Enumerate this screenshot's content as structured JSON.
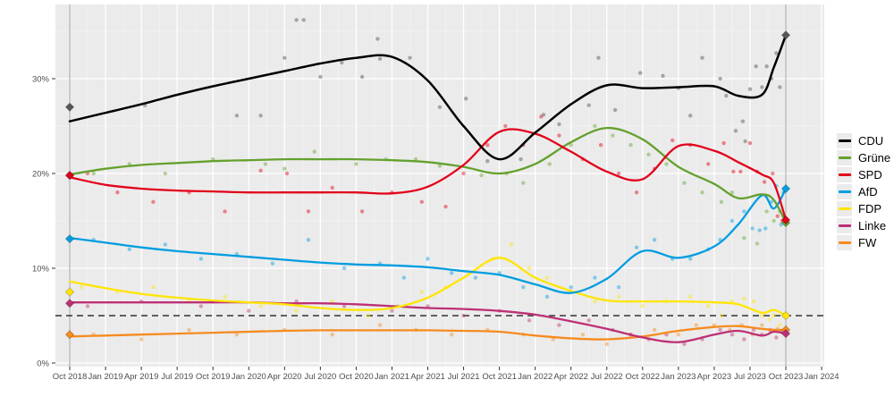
{
  "chart_data": {
    "type": "line",
    "title": "",
    "description": "Opinion polling trend chart, seven party series (scatter of individual polls + smoothed trend lines), election result diamonds at both ends",
    "x_axis": {
      "tick_months": [
        0,
        3,
        6,
        9,
        12,
        15,
        18,
        21,
        24,
        27,
        30,
        33,
        36,
        39,
        42,
        45,
        48,
        51,
        54,
        57,
        60,
        63
      ],
      "tick_labels": [
        "Oct 2018",
        "Jan 2019",
        "Apr 2019",
        "Jul 2019",
        "Oct 2019",
        "Jan 2020",
        "Apr 2020",
        "Jul 2020",
        "Oct 2020",
        "Jan 2021",
        "Apr 2021",
        "Jul 2021",
        "Oct 2021",
        "Jan 2022",
        "Apr 2022",
        "Jul 2022",
        "Oct 2022",
        "Jan 2023",
        "Apr 2023",
        "Jul 2023",
        "Oct 2023",
        "Jan 2024"
      ]
    },
    "y_axis": {
      "tick_values": [
        0,
        10,
        20,
        30
      ],
      "tick_labels": [
        "0%",
        "10%",
        "20%",
        "30%"
      ],
      "minor_values": [
        5,
        15,
        25,
        35
      ],
      "range": [
        0,
        37.8
      ]
    },
    "threshold_line": {
      "value": 5,
      "style": "dashed"
    },
    "election_lines_months": [
      0,
      60
    ],
    "trend_months": [
      0,
      3,
      6,
      9,
      12,
      15,
      18,
      21,
      24,
      27,
      30,
      33,
      36,
      39,
      42,
      45,
      48,
      51,
      54,
      56,
      58,
      59,
      60
    ],
    "parties": [
      {
        "name": "FW",
        "color": "#f68b1f",
        "result_2018": 3.0,
        "result_2023": 3.5,
        "trend": [
          2.8,
          2.9,
          3.0,
          3.1,
          3.2,
          3.3,
          3.4,
          3.45,
          3.45,
          3.45,
          3.45,
          3.4,
          3.3,
          2.9,
          2.6,
          2.5,
          2.8,
          3.4,
          3.8,
          3.9,
          3.6,
          3.5,
          3.5
        ],
        "polls": [
          [
            2,
            3.0
          ],
          [
            6,
            2.5
          ],
          [
            10,
            3.5
          ],
          [
            14,
            3.0
          ],
          [
            18,
            3.5
          ],
          [
            22,
            3.0
          ],
          [
            26,
            4.0
          ],
          [
            29,
            3.5
          ],
          [
            32,
            3.0
          ],
          [
            35,
            3.5
          ],
          [
            38,
            3.0
          ],
          [
            40.5,
            2.5
          ],
          [
            43,
            3.0
          ],
          [
            45,
            2.0
          ],
          [
            47,
            3.0
          ],
          [
            49,
            3.5
          ],
          [
            51,
            3.0
          ],
          [
            52.5,
            4.0
          ],
          [
            54,
            4.0
          ],
          [
            55.3,
            3.5
          ],
          [
            56.3,
            4.0
          ],
          [
            57.2,
            3.0
          ],
          [
            58,
            4.0
          ],
          [
            58.7,
            3.4
          ],
          [
            59.3,
            3.6
          ]
        ]
      },
      {
        "name": "Linke",
        "color": "#be3075",
        "result_2018": 6.3,
        "result_2023": 3.1,
        "trend": [
          6.4,
          6.4,
          6.4,
          6.4,
          6.4,
          6.4,
          6.3,
          6.3,
          6.2,
          6.0,
          5.8,
          5.7,
          5.5,
          5.1,
          4.4,
          3.6,
          2.7,
          2.2,
          3.0,
          3.4,
          2.9,
          3.3,
          3.1
        ],
        "polls": [
          [
            1.5,
            6.0
          ],
          [
            6,
            6.5
          ],
          [
            11,
            6.0
          ],
          [
            15,
            5.5
          ],
          [
            19,
            6.5
          ],
          [
            23,
            6.0
          ],
          [
            27,
            5.5
          ],
          [
            30,
            6.0
          ],
          [
            33,
            5.0
          ],
          [
            36,
            5.5
          ],
          [
            38.5,
            4.5
          ],
          [
            41,
            4.0
          ],
          [
            43.5,
            4.5
          ],
          [
            45.5,
            3.5
          ],
          [
            47,
            3.0
          ],
          [
            48.5,
            2.5
          ],
          [
            50,
            3.0
          ],
          [
            51.5,
            2.0
          ],
          [
            53,
            2.5
          ],
          [
            54.5,
            3.5
          ],
          [
            55.5,
            3.0
          ],
          [
            56.5,
            2.5
          ],
          [
            57.3,
            3.5
          ],
          [
            58,
            3.0
          ],
          [
            58.7,
            3.5
          ],
          [
            59.2,
            2.7
          ],
          [
            59.6,
            3.3
          ]
        ]
      },
      {
        "name": "FDP",
        "color": "#ffe500",
        "result_2018": 7.5,
        "result_2023": 5.0,
        "trend": [
          8.6,
          7.9,
          7.3,
          6.9,
          6.6,
          6.4,
          6.2,
          5.8,
          5.6,
          5.8,
          6.9,
          9.0,
          11.1,
          9.0,
          7.6,
          6.6,
          6.5,
          6.5,
          6.4,
          6.2,
          5.3,
          5.6,
          5.0
        ],
        "polls": [
          [
            1,
            8.0
          ],
          [
            4,
            7.5
          ],
          [
            7,
            8.0
          ],
          [
            10,
            6.5
          ],
          [
            13,
            7.0
          ],
          [
            16,
            6.0
          ],
          [
            19,
            5.5
          ],
          [
            22,
            6.5
          ],
          [
            25,
            5.0
          ],
          [
            27.5,
            6.0
          ],
          [
            29.5,
            7.5
          ],
          [
            31.5,
            8.0
          ],
          [
            33.5,
            9.5
          ],
          [
            35.5,
            11.0
          ],
          [
            37,
            12.5
          ],
          [
            38.5,
            10.0
          ],
          [
            40,
            9.0
          ],
          [
            42,
            7.5
          ],
          [
            44,
            6.5
          ],
          [
            46,
            7.0
          ],
          [
            48,
            6.0
          ],
          [
            50,
            6.5
          ],
          [
            52,
            7.0
          ],
          [
            53.5,
            6.0
          ],
          [
            54.6,
            5.0
          ],
          [
            55.5,
            6.5
          ],
          [
            56.5,
            6.8
          ],
          [
            57.3,
            6.5
          ],
          [
            58,
            5.0
          ],
          [
            58.6,
            4.6
          ],
          [
            59,
            5.0
          ],
          [
            59.5,
            4.0
          ]
        ]
      },
      {
        "name": "AfD",
        "color": "#009de0",
        "result_2018": 13.1,
        "result_2023": 18.4,
        "trend": [
          13.2,
          12.7,
          12.2,
          11.8,
          11.5,
          11.2,
          10.9,
          10.6,
          10.4,
          10.3,
          10.1,
          9.7,
          9.3,
          8.3,
          7.4,
          8.9,
          11.8,
          11.1,
          12.3,
          14.6,
          17.7,
          16.3,
          18.4
        ],
        "polls": [
          [
            2,
            13.0
          ],
          [
            5,
            12.0
          ],
          [
            8,
            12.5
          ],
          [
            11,
            11.0
          ],
          [
            14,
            11.5
          ],
          [
            17,
            10.5
          ],
          [
            20,
            13.0
          ],
          [
            23,
            10.0
          ],
          [
            26,
            10.5
          ],
          [
            28,
            9.0
          ],
          [
            30,
            11.0
          ],
          [
            32,
            9.5
          ],
          [
            34,
            9.0
          ],
          [
            36,
            9.5
          ],
          [
            38,
            8.0
          ],
          [
            40,
            7.0
          ],
          [
            42,
            8.0
          ],
          [
            44,
            9.0
          ],
          [
            46,
            8.0
          ],
          [
            47.5,
            12.2
          ],
          [
            49,
            13.0
          ],
          [
            50.5,
            11.0
          ],
          [
            52,
            11.0
          ],
          [
            53.5,
            12.0
          ],
          [
            54.5,
            13.0
          ],
          [
            55.5,
            15.0
          ],
          [
            56.5,
            16.0
          ],
          [
            57.2,
            14.2
          ],
          [
            57.8,
            14.0
          ],
          [
            58.3,
            14.2
          ],
          [
            58.8,
            17.0
          ],
          [
            59.2,
            18.7
          ],
          [
            59.6,
            14.6
          ],
          [
            59.8,
            18.0
          ]
        ]
      },
      {
        "name": "Grüne",
        "color": "#64a12d",
        "result_2018": 19.8,
        "result_2023": 14.8,
        "trend": [
          19.9,
          20.5,
          20.9,
          21.1,
          21.3,
          21.4,
          21.5,
          21.5,
          21.5,
          21.4,
          21.2,
          20.7,
          20.0,
          21.0,
          23.3,
          24.8,
          23.6,
          20.7,
          18.9,
          17.4,
          17.8,
          17.2,
          14.8
        ],
        "polls": [
          [
            2,
            20.0
          ],
          [
            5,
            21.0
          ],
          [
            8,
            20.0
          ],
          [
            12,
            21.5
          ],
          [
            16.4,
            21.0
          ],
          [
            18,
            20.5
          ],
          [
            20.5,
            22.3
          ],
          [
            24,
            21.0
          ],
          [
            26.5,
            21.5
          ],
          [
            29,
            21.5
          ],
          [
            31,
            20.8
          ],
          [
            34.5,
            19.8
          ],
          [
            36.6,
            20.0
          ],
          [
            38,
            19.0
          ],
          [
            40.2,
            21.0
          ],
          [
            42,
            23.0
          ],
          [
            44,
            25.0
          ],
          [
            45.5,
            24.0
          ],
          [
            47,
            23.0
          ],
          [
            48.5,
            22.0
          ],
          [
            50,
            21.0
          ],
          [
            51.5,
            19.0
          ],
          [
            53,
            18.0
          ],
          [
            54.6,
            17.0
          ],
          [
            55.5,
            18.0
          ],
          [
            56.5,
            13.2
          ],
          [
            57.6,
            12.6
          ],
          [
            58.4,
            16.0
          ],
          [
            59.0,
            15.0
          ],
          [
            59.5,
            16.0
          ]
        ]
      },
      {
        "name": "SPD",
        "color": "#e2001a",
        "result_2018": 19.8,
        "result_2023": 15.1,
        "trend": [
          19.6,
          18.8,
          18.4,
          18.2,
          18.1,
          18.0,
          18.0,
          18.0,
          18.0,
          17.9,
          18.6,
          20.9,
          24.4,
          24.2,
          22.3,
          20.2,
          19.4,
          22.9,
          22.4,
          21.2,
          19.9,
          19.0,
          15.1
        ],
        "polls": [
          [
            1.5,
            20.0
          ],
          [
            4,
            18.0
          ],
          [
            7,
            17.0
          ],
          [
            10,
            18.0
          ],
          [
            13,
            16.0
          ],
          [
            16,
            20.3
          ],
          [
            18.2,
            20.0
          ],
          [
            20,
            16.0
          ],
          [
            22,
            18.5
          ],
          [
            24.5,
            16.0
          ],
          [
            27,
            18.0
          ],
          [
            29.5,
            17.0
          ],
          [
            31.5,
            16.5
          ],
          [
            33,
            20.0
          ],
          [
            35,
            23.0
          ],
          [
            36.5,
            25.0
          ],
          [
            38,
            23.0
          ],
          [
            39.5,
            26.0
          ],
          [
            41,
            24.0
          ],
          [
            43,
            21.5
          ],
          [
            44.5,
            23.0
          ],
          [
            46,
            20.0
          ],
          [
            47.5,
            18.0
          ],
          [
            49,
            20.5
          ],
          [
            50.5,
            23.5
          ],
          [
            52,
            23.0
          ],
          [
            53.5,
            21.0
          ],
          [
            54.8,
            23.2
          ],
          [
            55.6,
            20.2
          ],
          [
            56.2,
            20.2
          ],
          [
            57,
            23.2
          ],
          [
            57.6,
            20.2
          ],
          [
            58.2,
            19.1
          ],
          [
            58.9,
            20.0
          ],
          [
            59.3,
            15.5
          ],
          [
            59.7,
            15.0
          ]
        ]
      },
      {
        "name": "CDU",
        "color": "#000000",
        "result_2018": 27.0,
        "result_2023": 34.6,
        "trend": [
          25.5,
          26.4,
          27.3,
          28.3,
          29.2,
          30.0,
          30.8,
          31.6,
          32.2,
          32.3,
          29.8,
          25.0,
          21.5,
          24.3,
          27.3,
          29.3,
          29.0,
          29.1,
          29.2,
          28.2,
          28.3,
          31.2,
          34.6
        ],
        "polls": [
          [
            19,
            36.2
          ],
          [
            19.6,
            36.2
          ],
          [
            25.8,
            34.2
          ],
          [
            6.3,
            27.2
          ],
          [
            14,
            26.1
          ],
          [
            16,
            26.1
          ],
          [
            18,
            32.2
          ],
          [
            21,
            30.2
          ],
          [
            22.8,
            31.7
          ],
          [
            24.5,
            30.2
          ],
          [
            26,
            32.1
          ],
          [
            28.5,
            32.2
          ],
          [
            31,
            27.0
          ],
          [
            33.2,
            27.9
          ],
          [
            35,
            21.3
          ],
          [
            37.8,
            21.5
          ],
          [
            39.7,
            26.2
          ],
          [
            41,
            25.2
          ],
          [
            43.5,
            27.2
          ],
          [
            44.3,
            32.2
          ],
          [
            45.7,
            26.7
          ],
          [
            47.8,
            30.6
          ],
          [
            49.7,
            30.3
          ],
          [
            51,
            29.0
          ],
          [
            52,
            26.1
          ],
          [
            53,
            32.2
          ],
          [
            54.5,
            30.0
          ],
          [
            55,
            28.2
          ],
          [
            55.8,
            24.5
          ],
          [
            56.4,
            25.5
          ],
          [
            56.6,
            23.4
          ],
          [
            57,
            28.9
          ],
          [
            57.5,
            31.3
          ],
          [
            58,
            29.1
          ],
          [
            58.4,
            31.3
          ],
          [
            58.8,
            30.0
          ],
          [
            59.2,
            32.7
          ],
          [
            59.5,
            29.1
          ]
        ]
      }
    ],
    "legend": {
      "position": "right",
      "items": [
        "CDU",
        "Grüne",
        "SPD",
        "AfD",
        "FDP",
        "Linke",
        "FW"
      ]
    }
  },
  "colors": {
    "panel_background": "#ebebeb",
    "grid_major": "#ffffff",
    "grid_minor": "#ffffff",
    "axis_text": "#4d4d4d",
    "tick_mark": "#333333",
    "election_line": "#b0b0b0",
    "threshold_line": "#333333",
    "cdu_diamond": "#565656"
  }
}
